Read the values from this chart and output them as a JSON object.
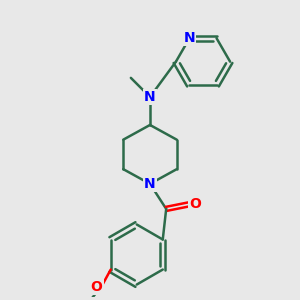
{
  "background_color": "#e8e8e8",
  "bond_color": "#2d6b4a",
  "bond_width": 1.8,
  "nitrogen_color": "#0000ff",
  "oxygen_color": "#ff0000",
  "figsize": [
    3.0,
    3.0
  ],
  "dpi": 100,
  "xlim": [
    0,
    10
  ],
  "ylim": [
    0,
    10
  ]
}
